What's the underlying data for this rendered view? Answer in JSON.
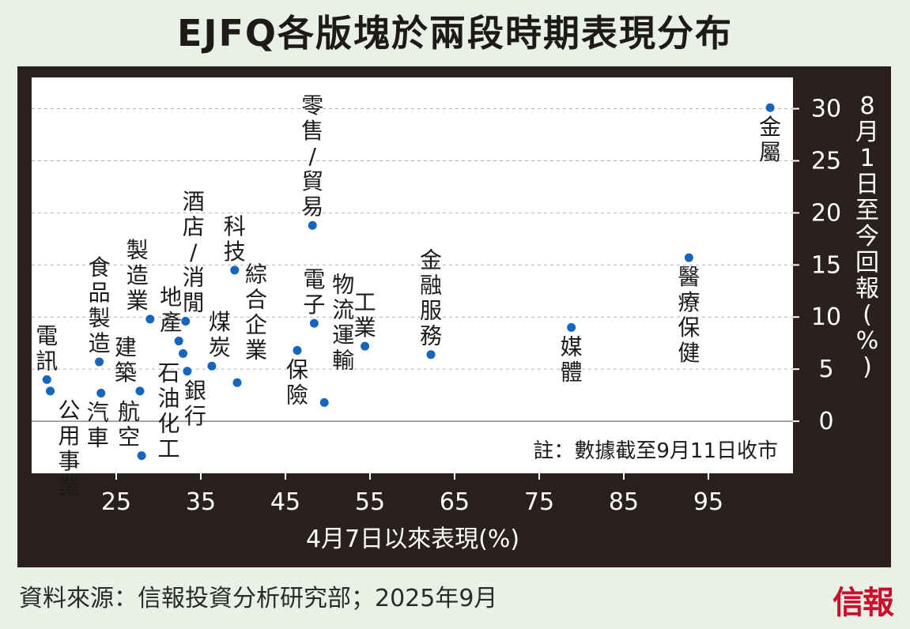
{
  "header": {
    "title": "EJFQ各版塊於兩段時期表現分布"
  },
  "footer": {
    "source": "資料來源：信報投資分析研究部；2025年9月",
    "logo_text": "信報"
  },
  "colors": {
    "background": "#e9f1e7",
    "frame": "#2a201e",
    "plot": "#ffffff",
    "point": "#1565c0",
    "logo": "#c8102e"
  },
  "chart_data": {
    "type": "scatter",
    "title": "EJFQ各版塊於兩段時期表現分布",
    "xlabel": "4月7日以來表現(%)",
    "ylabel": "8月1日至今回報(%)",
    "note": "註：數據截至9月11日收市",
    "xlim": [
      15,
      105
    ],
    "ylim": [
      -5,
      33
    ],
    "xticks": [
      "25",
      "35",
      "45",
      "55",
      "65",
      "75",
      "85",
      "95"
    ],
    "yticks": [
      "0",
      "5",
      "10",
      "15",
      "20",
      "25",
      "30"
    ],
    "grid": "horizontal-dashed",
    "points": [
      {
        "label": "電訊",
        "x": 16.8,
        "y": 4.0
      },
      {
        "label": "公用事業",
        "x": 17.2,
        "y": 2.9
      },
      {
        "label": "食品製造",
        "x": 23.0,
        "y": 5.7
      },
      {
        "label": "汽車",
        "x": 23.2,
        "y": 2.7
      },
      {
        "label": "建築",
        "x": 27.8,
        "y": 2.9
      },
      {
        "label": "航空",
        "x": 28.0,
        "y": -3.3
      },
      {
        "label": "製造業",
        "x": 29.0,
        "y": 9.8
      },
      {
        "label": "地產",
        "x": 32.4,
        "y": 7.7
      },
      {
        "label": "石油化工",
        "x": 32.9,
        "y": 6.5
      },
      {
        "label": "酒店/消閒",
        "x": 33.2,
        "y": 9.6
      },
      {
        "label": "銀行",
        "x": 33.4,
        "y": 4.8
      },
      {
        "label": "煤炭",
        "x": 36.3,
        "y": 5.3
      },
      {
        "label": "科技",
        "x": 39.0,
        "y": 14.5
      },
      {
        "label": "綜合企業",
        "x": 39.3,
        "y": 3.7
      },
      {
        "label": "保險",
        "x": 46.4,
        "y": 6.8
      },
      {
        "label": "零售/貿易",
        "x": 48.2,
        "y": 18.8
      },
      {
        "label": "電子",
        "x": 48.4,
        "y": 9.4
      },
      {
        "label": "物流運輸",
        "x": 49.6,
        "y": 1.8
      },
      {
        "label": "工業",
        "x": 54.4,
        "y": 7.2
      },
      {
        "label": "金融服務",
        "x": 62.2,
        "y": 6.4
      },
      {
        "label": "媒體",
        "x": 78.8,
        "y": 9.0
      },
      {
        "label": "醫療保健",
        "x": 92.7,
        "y": 15.7
      },
      {
        "label": "金屬",
        "x": 102.3,
        "y": 30.1
      }
    ]
  }
}
